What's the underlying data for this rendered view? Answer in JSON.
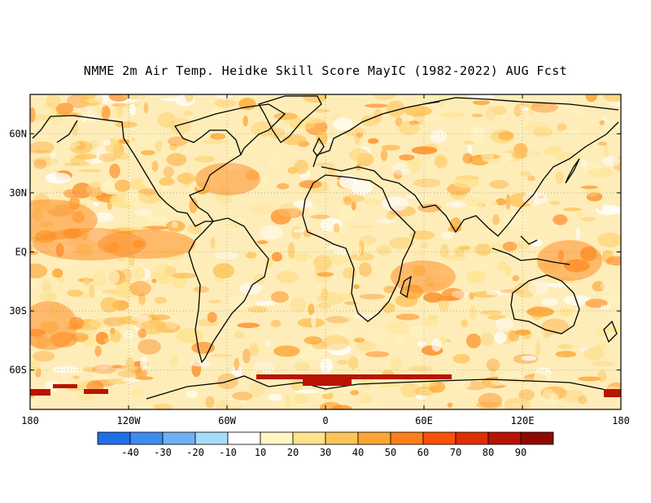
{
  "title": "NMME 2m Air Temp. Heidke Skill Score MayIC (1982-2022) AUG Fcst",
  "map": {
    "lon_range": [
      -180,
      180
    ],
    "lat_range": [
      -80,
      80
    ],
    "lat_ticks": [
      {
        "value": 60,
        "label": "60N"
      },
      {
        "value": 30,
        "label": "30N"
      },
      {
        "value": 0,
        "label": "EQ"
      },
      {
        "value": -30,
        "label": "30S"
      },
      {
        "value": -60,
        "label": "60S"
      }
    ],
    "lon_ticks": [
      {
        "value": -180,
        "label": "180"
      },
      {
        "value": -120,
        "label": "120W"
      },
      {
        "value": -60,
        "label": "60W"
      },
      {
        "value": 0,
        "label": "0"
      },
      {
        "value": 60,
        "label": "60E"
      },
      {
        "value": 120,
        "label": "120E"
      },
      {
        "value": 180,
        "label": "180"
      }
    ],
    "gridlines": "dotted"
  },
  "colorbar": {
    "labels": [
      "-40",
      "-30",
      "-20",
      "-10",
      "10",
      "20",
      "30",
      "40",
      "50",
      "60",
      "70",
      "80",
      "90"
    ],
    "colors": [
      "#1f6fe8",
      "#3d8cf0",
      "#6fb0f5",
      "#a6dcf8",
      "#ffffff",
      "#fff6c2",
      "#fee38c",
      "#fec45a",
      "#fda533",
      "#fd7f1c",
      "#f8520a",
      "#e02e02",
      "#b91302",
      "#8e0a00"
    ]
  }
}
